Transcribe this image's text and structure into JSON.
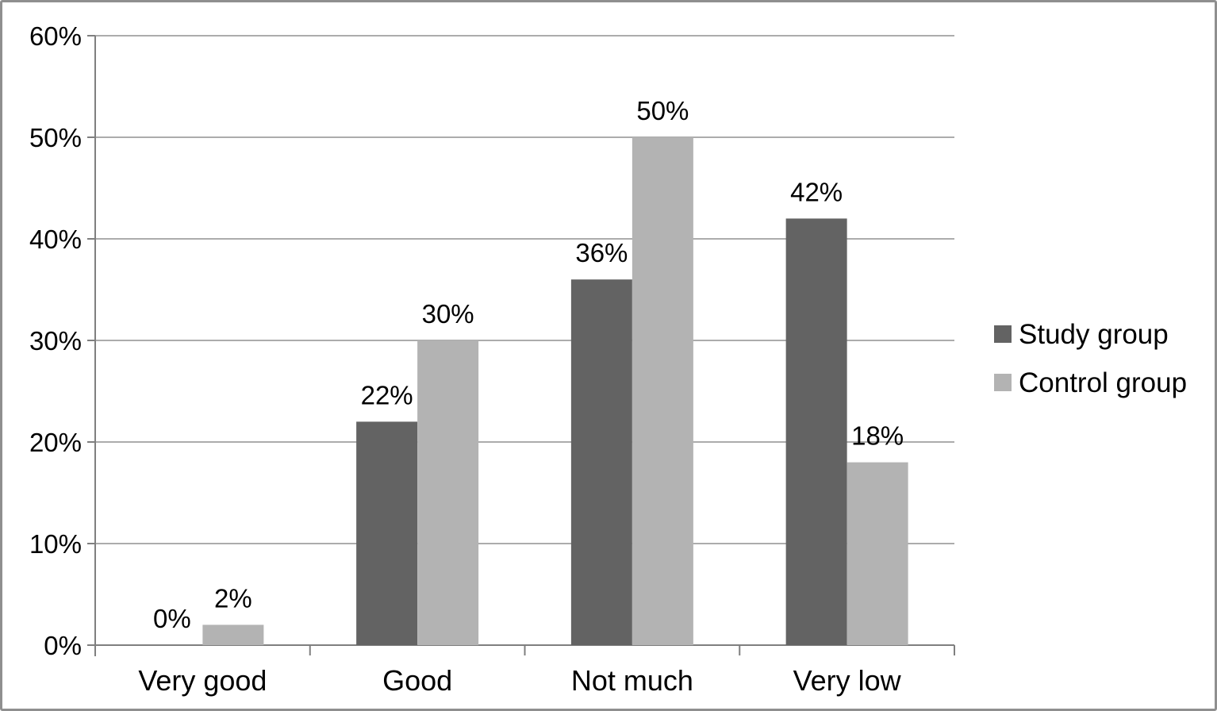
{
  "chart_data": {
    "type": "bar",
    "title": "",
    "xlabel": "",
    "ylabel": "",
    "categories": [
      "Very good",
      "Good",
      "Not much",
      "Very low"
    ],
    "series": [
      {
        "name": "Study group",
        "color": "#636363",
        "values": [
          0,
          22,
          36,
          42
        ],
        "labels": [
          "0%",
          "22%",
          "36%",
          "42%"
        ]
      },
      {
        "name": "Control group",
        "color": "#b3b3b3",
        "values": [
          2,
          30,
          50,
          18
        ],
        "labels": [
          "2%",
          "30%",
          "50%",
          "18%"
        ]
      }
    ],
    "value_suffix": "%",
    "ylim": [
      0,
      60
    ],
    "ytick_step": 10,
    "ytick_labels": [
      "0%",
      "10%",
      "20%",
      "30%",
      "40%",
      "50%",
      "60%"
    ],
    "grid": true,
    "legend_position": "right",
    "colors": {
      "grid_line": "#909090",
      "axis_line": "#7f7f7f",
      "text": "#000000",
      "frame_border": "#8f8f8f",
      "background": "#ffffff"
    }
  }
}
